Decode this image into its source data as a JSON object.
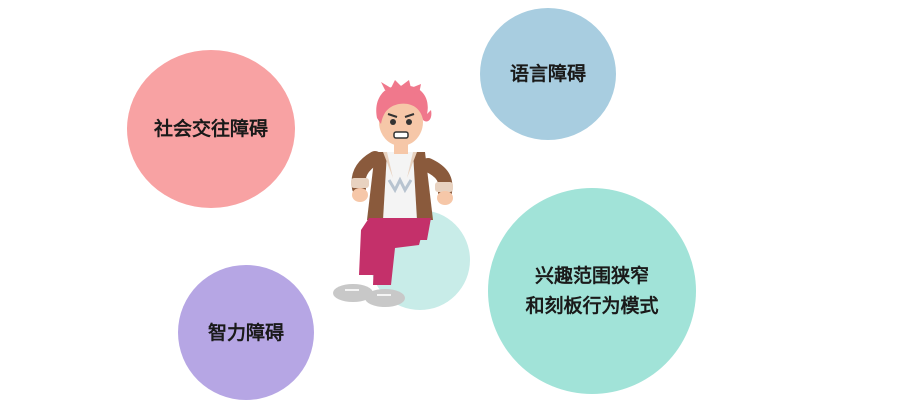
{
  "bubbles": {
    "social": {
      "label": "社会交往障碍",
      "color": "#f8a2a3"
    },
    "language": {
      "label": "语言障碍",
      "color": "#a8cde0"
    },
    "interest": {
      "label": "兴趣范围狭窄\n和刻板行为模式",
      "color": "#a1e3d8"
    },
    "intellect": {
      "label": "智力障碍",
      "color": "#b6a6e4"
    }
  },
  "figure": {
    "description_icon": "anxious-child-on-ball-illustration",
    "ball_color": "#c8ece8",
    "hair_color": "#f0788c",
    "jacket_color": "#8a5a3c",
    "pants_color": "#c4306a"
  }
}
